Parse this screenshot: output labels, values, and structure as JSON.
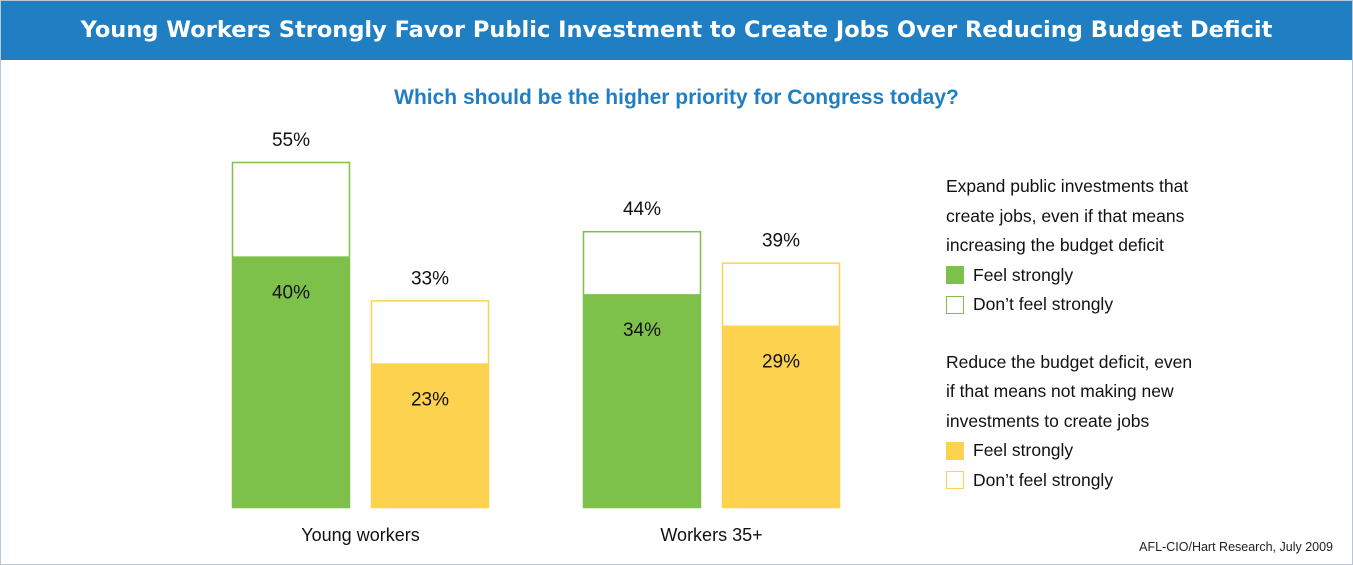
{
  "title": "Young Workers Strongly Favor Public Investment to Create Jobs Over Reducing Budget Deficit",
  "subtitle": "Which should be the higher priority for Congress today?",
  "source": "AFL-CIO/Hart Research, July 2009",
  "colors": {
    "title_bg": "#1f7fc2",
    "subtitle": "#1f7fc2",
    "expand": "#7dc14b",
    "reduce": "#fdd24f",
    "empty": "#ffffff"
  },
  "legend": {
    "expand": {
      "heading_lines": [
        "Expand public investments that",
        "create jobs, even if that means",
        "increasing the budget deficit"
      ],
      "strong": "Feel strongly",
      "not_strong": "Don’t feel strongly"
    },
    "reduce": {
      "heading_lines": [
        "Reduce the budget deficit, even",
        "if that means not making new",
        "investments to create jobs"
      ],
      "strong": "Feel strongly",
      "not_strong": "Don’t feel strongly"
    }
  },
  "chart_data": {
    "type": "bar",
    "title": "Young Workers Strongly Favor Public Investment to Create Jobs Over Reducing Budget Deficit",
    "subtitle": "Which should be the higher priority for Congress today?",
    "categories": [
      "Young workers",
      "Workers 35+"
    ],
    "ylim": [
      0,
      55
    ],
    "series": [
      {
        "name": "Expand public investments that create jobs, even if that means increasing the budget deficit",
        "key": "expand",
        "total": [
          55,
          44
        ],
        "strong": [
          40,
          34
        ],
        "total_labels": [
          "55%",
          "44%"
        ],
        "strong_labels": [
          "40%",
          "34%"
        ]
      },
      {
        "name": "Reduce the budget deficit, even if that means not making new investments to create jobs",
        "key": "reduce",
        "total": [
          33,
          39
        ],
        "strong": [
          23,
          29
        ],
        "total_labels": [
          "33%",
          "39%"
        ],
        "strong_labels": [
          "23%",
          "29%"
        ]
      }
    ],
    "legend": "right",
    "grid": false
  }
}
